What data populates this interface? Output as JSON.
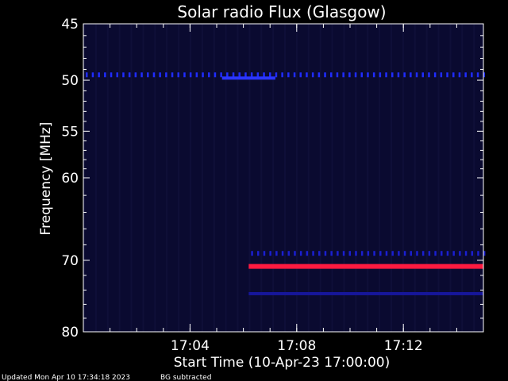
{
  "chart_data": {
    "type": "heatmap",
    "title": "Solar radio Flux (Glasgow)",
    "xlabel": "Start Time (10-Apr-23 17:00:00)",
    "ylabel": "Frequency [MHz]",
    "x_unit": "minutes after 17:00:00",
    "xlim": [
      0,
      15
    ],
    "ylim": [
      45,
      80
    ],
    "yticks": [
      45,
      50,
      55,
      60,
      70,
      80
    ],
    "xticks": [
      {
        "value": 4,
        "label": "17:04"
      },
      {
        "value": 8,
        "label": "17:08"
      },
      {
        "value": 12,
        "label": "17:12"
      }
    ],
    "background_color": "#0a0a30",
    "features": [
      {
        "name": "interference line",
        "freq_mhz": 49.5,
        "x_start": 0,
        "x_end": 15,
        "style": "dashed",
        "color": "#1f2cff"
      },
      {
        "name": "burst",
        "freq_mhz": 49.8,
        "x_start": 5.2,
        "x_end": 7.2,
        "style": "solid",
        "color": "#2b36ff"
      },
      {
        "name": "interference line",
        "freq_mhz": 69.1,
        "x_start": 6.2,
        "x_end": 15,
        "style": "dashed",
        "color": "#1a1fd0"
      },
      {
        "name": "interference line",
        "freq_mhz": 70.8,
        "x_start": 6.2,
        "x_end": 15,
        "style": "solid",
        "color": "#ff1a40"
      },
      {
        "name": "interference line",
        "freq_mhz": 74.5,
        "x_start": 6.2,
        "x_end": 15,
        "style": "solid",
        "color": "#16169a"
      }
    ],
    "grid": false
  },
  "footer": {
    "updated": "Updated Mon Apr 10 17:34:18 2023",
    "note": "BG subtracted"
  }
}
